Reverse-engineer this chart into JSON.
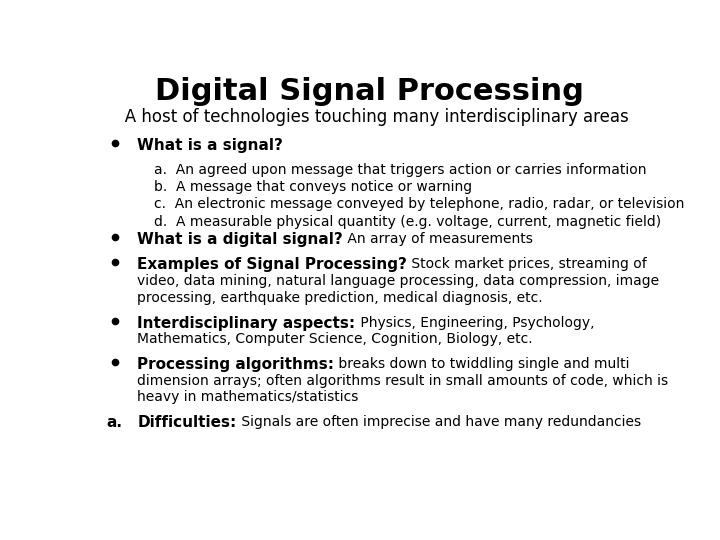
{
  "bg_color": "#ffffff",
  "title": "Digital Signal Processing",
  "subtitle": "   A host of technologies touching many interdisciplinary areas",
  "title_fontsize": 22,
  "subtitle_fontsize": 12,
  "body_fontsize": 10,
  "bold_fontsize": 11,
  "content": [
    {
      "type": "bullet",
      "bold": "What is a signal?",
      "normal": ""
    },
    {
      "type": "subbullet",
      "text": "a.  An agreed upon message that triggers action or carries information"
    },
    {
      "type": "subbullet",
      "text": "b.  A message that conveys notice or warning"
    },
    {
      "type": "subbullet",
      "text": "c.  An electronic message conveyed by telephone, radio, radar, or television"
    },
    {
      "type": "subbullet",
      "text": "d.  A measurable physical quantity (e.g. voltage, current, magnetic field)"
    },
    {
      "type": "bullet",
      "bold": "What is a digital signal?",
      "normal": " An array of measurements"
    },
    {
      "type": "bullet",
      "bold": "Examples of Signal Processing?",
      "normal": " Stock market prices, streaming of\nvideo, data mining, natural language processing, data compression, image\nprocessing, earthquake prediction, medical diagnosis, etc."
    },
    {
      "type": "bullet",
      "bold": "Interdisciplinary aspects:",
      "normal": " Physics, Engineering, Psychology,\nMathematics, Computer Science, Cognition, Biology, etc."
    },
    {
      "type": "bullet",
      "bold": "Processing algorithms:",
      "normal": " breaks down to twiddling single and multi\ndimension arrays; often algorithms result in small amounts of code, which is\nheavy in mathematics/statistics"
    },
    {
      "type": "alpha_bullet",
      "letter": "a.",
      "bold": "Difficulties:",
      "normal": " Signals are often imprecise and have many redundancies"
    }
  ]
}
